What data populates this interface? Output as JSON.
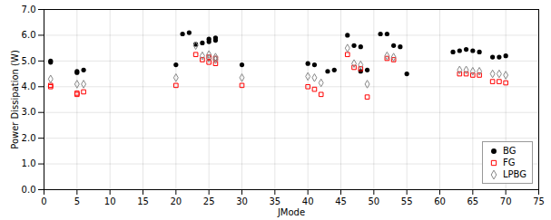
{
  "chart_data": {
    "type": "scatter",
    "xlabel": "JMode",
    "ylabel": "Power Dissipation (W)",
    "xlim": [
      0,
      75
    ],
    "ylim": [
      0,
      7
    ],
    "xticks": [
      0,
      5,
      10,
      15,
      20,
      25,
      30,
      35,
      40,
      45,
      50,
      55,
      60,
      65,
      70,
      75
    ],
    "yticks": [
      0,
      1,
      2,
      3,
      4,
      5,
      6,
      7
    ],
    "grid": true,
    "legend": "lower right",
    "series": [
      {
        "name": "BG",
        "color": "#000000",
        "marker": "circle",
        "x": [
          1,
          1,
          5,
          5,
          6,
          20,
          21,
          22,
          23,
          24,
          25,
          26,
          25,
          26,
          30,
          40,
          41,
          43,
          44,
          46,
          47,
          48,
          48,
          49,
          51,
          52,
          53,
          54,
          55,
          62,
          63,
          64,
          65,
          66,
          68,
          69,
          70
        ],
        "values": [
          4.95,
          5.0,
          4.55,
          4.6,
          4.65,
          4.85,
          6.05,
          6.1,
          5.65,
          5.7,
          5.75,
          5.8,
          5.85,
          5.9,
          4.85,
          4.9,
          4.85,
          4.6,
          4.65,
          6.0,
          5.6,
          5.55,
          4.6,
          4.65,
          6.05,
          6.05,
          5.6,
          5.55,
          4.5,
          5.35,
          5.4,
          5.45,
          5.4,
          5.35,
          5.15,
          5.15,
          5.2
        ]
      },
      {
        "name": "FG",
        "color": "#ff0000",
        "marker": "square-open",
        "x": [
          1,
          1,
          5,
          5,
          6,
          20,
          23,
          24,
          25,
          26,
          25,
          26,
          30,
          40,
          41,
          42,
          46,
          47,
          48,
          49,
          52,
          53,
          63,
          64,
          65,
          66,
          68,
          69,
          70
        ],
        "values": [
          4.05,
          4.0,
          3.75,
          3.7,
          3.8,
          4.05,
          5.25,
          5.05,
          4.95,
          4.9,
          5.15,
          5.1,
          4.05,
          4.0,
          3.9,
          3.7,
          5.25,
          4.75,
          4.7,
          3.6,
          5.1,
          5.05,
          4.5,
          4.5,
          4.45,
          4.45,
          4.2,
          4.2,
          4.15
        ]
      },
      {
        "name": "LPBG",
        "color": "#888888",
        "marker": "diamond-open",
        "x": [
          1,
          5,
          6,
          20,
          23,
          24,
          25,
          26,
          25,
          26,
          30,
          40,
          41,
          42,
          46,
          47,
          48,
          49,
          52,
          53,
          63,
          64,
          65,
          66,
          68,
          69,
          70
        ],
        "values": [
          4.3,
          4.1,
          4.1,
          4.35,
          5.6,
          5.2,
          5.1,
          5.05,
          5.25,
          5.15,
          4.35,
          4.4,
          4.35,
          4.15,
          5.5,
          4.9,
          4.85,
          4.1,
          5.2,
          5.15,
          4.65,
          4.65,
          4.6,
          4.6,
          4.5,
          4.5,
          4.45
        ]
      }
    ]
  }
}
